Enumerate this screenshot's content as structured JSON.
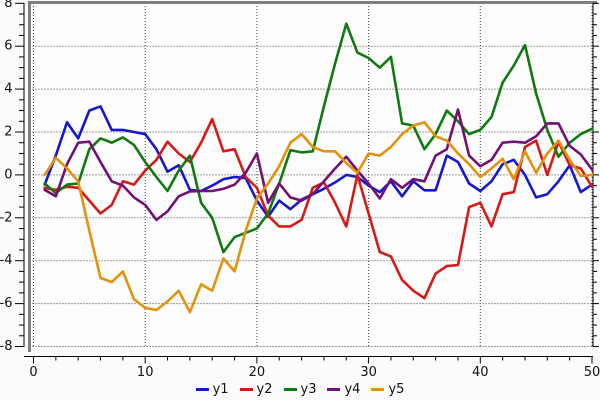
{
  "chart_data": {
    "type": "line",
    "title": "",
    "xlabel": "",
    "ylabel": "",
    "xlim": [
      0,
      50
    ],
    "ylim": [
      -8,
      8
    ],
    "x_axis": {
      "major_step": 10,
      "minor_step": 2,
      "tick_labels": [
        "0",
        "10",
        "20",
        "30",
        "40",
        "50"
      ]
    },
    "y_axis": {
      "major_step": 2,
      "minor_step": 0.5,
      "tick_labels": [
        "8",
        "6",
        "4",
        "2",
        "0",
        "-2",
        "-4",
        "-6",
        "-8"
      ]
    },
    "grid": {
      "visible": true,
      "style": "dotted",
      "h_step": 2,
      "v_step": 10
    },
    "legend_position": "bottom-center",
    "frame_color": "#7f7f7f",
    "axis_color": "#000000",
    "grid_color": "#3a3a3a",
    "background_color": "#fbfbfb",
    "x": [
      1,
      2,
      3,
      4,
      5,
      6,
      7,
      8,
      9,
      10,
      11,
      12,
      13,
      14,
      15,
      16,
      17,
      18,
      19,
      20,
      21,
      22,
      23,
      24,
      25,
      26,
      27,
      28,
      29,
      30,
      31,
      32,
      33,
      34,
      35,
      36,
      37,
      38,
      39,
      40,
      41,
      42,
      43,
      44,
      45,
      46,
      47,
      48,
      49,
      50
    ],
    "series": [
      {
        "name": "y1",
        "color": "#1717cf",
        "values": [
          -0.45,
          0.9,
          2.45,
          1.7,
          3.0,
          3.2,
          2.1,
          2.1,
          2.0,
          1.9,
          1.2,
          0.15,
          0.45,
          -0.7,
          -0.75,
          -0.5,
          -0.2,
          -0.1,
          -0.15,
          -1.2,
          -1.95,
          -1.2,
          -1.6,
          -1.15,
          -0.9,
          -0.65,
          -0.35,
          0.0,
          -0.1,
          -0.5,
          -0.8,
          -0.3,
          -1.0,
          -0.3,
          -0.72,
          -0.72,
          0.9,
          0.6,
          -0.4,
          -0.75,
          -0.3,
          0.5,
          0.7,
          0.0,
          -1.05,
          -0.9,
          -0.3,
          0.45,
          -0.8,
          -0.45
        ]
      },
      {
        "name": "y2",
        "color": "#d61a17",
        "values": [
          -0.6,
          -0.7,
          -0.55,
          -0.6,
          -1.2,
          -1.8,
          -1.4,
          -0.3,
          -0.45,
          0.2,
          0.7,
          1.55,
          1.0,
          0.6,
          1.5,
          2.6,
          1.1,
          1.2,
          -0.1,
          -0.6,
          -1.9,
          -2.4,
          -2.4,
          -2.1,
          -0.6,
          -0.35,
          -1.3,
          -2.4,
          0.0,
          -1.8,
          -3.6,
          -3.8,
          -4.9,
          -5.4,
          -5.75,
          -4.6,
          -4.25,
          -4.2,
          -1.5,
          -1.3,
          -2.4,
          -0.9,
          -0.8,
          1.3,
          1.6,
          0.0,
          1.55,
          0.45,
          0.3,
          -0.55
        ]
      },
      {
        "name": "y3",
        "color": "#107a10",
        "values": [
          -0.4,
          -0.85,
          -0.45,
          -0.4,
          1.2,
          1.7,
          1.5,
          1.75,
          1.4,
          0.6,
          -0.1,
          -0.75,
          0.2,
          0.9,
          -1.3,
          -2.0,
          -3.6,
          -2.9,
          -2.7,
          -2.5,
          -1.8,
          -0.4,
          1.15,
          1.05,
          1.1,
          3.2,
          5.2,
          7.05,
          5.7,
          5.45,
          5.0,
          5.5,
          2.4,
          2.3,
          1.2,
          1.9,
          3.0,
          2.5,
          1.9,
          2.1,
          2.7,
          4.3,
          5.1,
          6.05,
          3.8,
          2.1,
          0.85,
          1.5,
          1.9,
          2.15
        ]
      },
      {
        "name": "y4",
        "color": "#740f74",
        "values": [
          -0.7,
          -1.0,
          0.5,
          1.5,
          1.55,
          0.6,
          -0.3,
          -0.5,
          -1.05,
          -1.4,
          -2.1,
          -1.7,
          -1.0,
          -0.77,
          -0.75,
          -0.75,
          -0.65,
          -0.45,
          0.1,
          1.0,
          -1.3,
          -0.4,
          -1.05,
          -1.2,
          -0.9,
          -0.3,
          0.3,
          0.85,
          0.2,
          -0.4,
          -1.1,
          -0.2,
          -0.6,
          -0.2,
          -0.3,
          0.9,
          1.2,
          3.05,
          0.9,
          0.4,
          0.7,
          1.5,
          1.55,
          1.5,
          1.8,
          2.4,
          2.4,
          1.35,
          0.95,
          0.25
        ]
      },
      {
        "name": "y5",
        "color": "#e3920e",
        "values": [
          0.0,
          0.8,
          0.3,
          -0.3,
          -2.6,
          -4.8,
          -5.0,
          -4.5,
          -5.8,
          -6.2,
          -6.3,
          -5.9,
          -5.4,
          -6.4,
          -5.1,
          -5.4,
          -3.9,
          -4.5,
          -2.6,
          -1.1,
          -0.4,
          0.4,
          1.5,
          1.9,
          1.3,
          1.1,
          1.1,
          0.55,
          0.1,
          1.0,
          0.9,
          1.3,
          1.9,
          2.3,
          2.45,
          1.8,
          1.6,
          1.0,
          0.5,
          -0.1,
          0.3,
          0.75,
          -0.2,
          1.1,
          0.1,
          1.0,
          1.6,
          0.7,
          -0.05,
          0.0
        ]
      }
    ],
    "legend": [
      "y1",
      "y2",
      "y3",
      "y4",
      "y5"
    ]
  }
}
